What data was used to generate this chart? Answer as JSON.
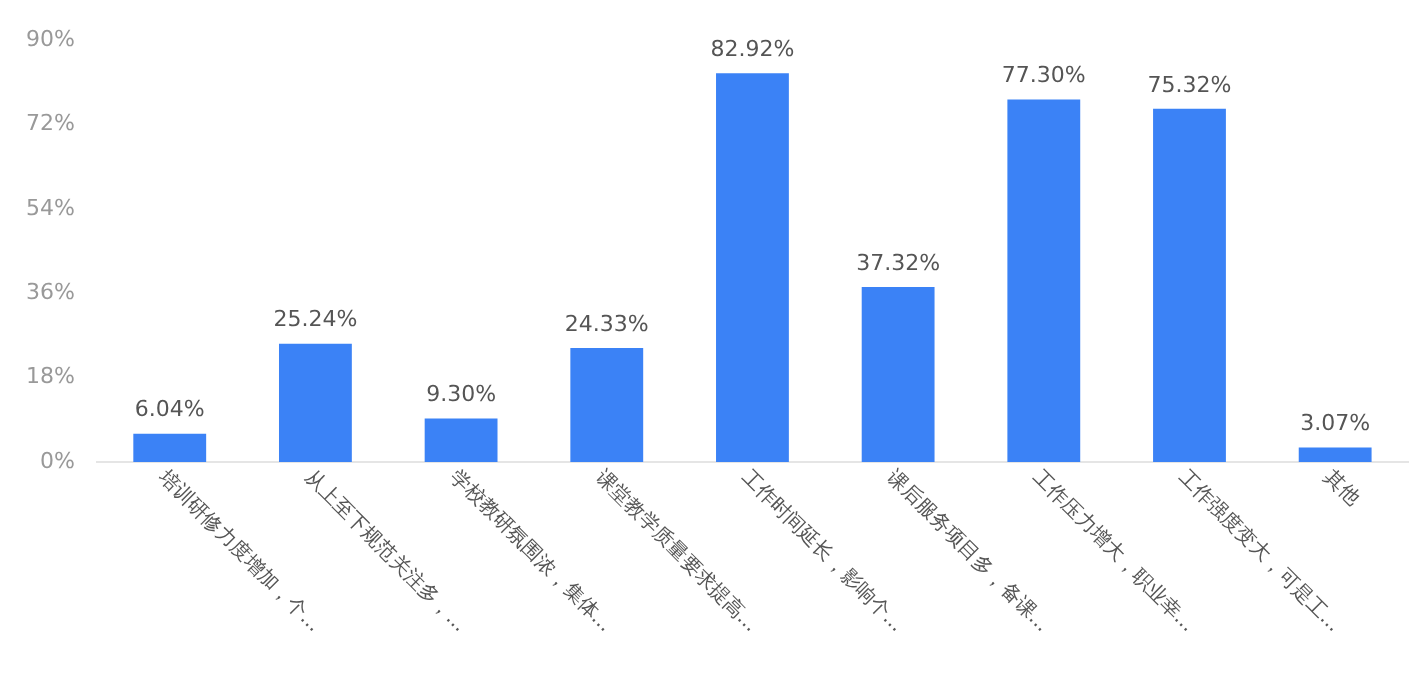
{
  "chart_data": {
    "type": "bar",
    "categories": [
      "培训研修力度增加，个...",
      "从上至下规范关注多，...",
      "学校教研氛围浓，集体...",
      "课堂教学质量要求提高...",
      "工作时间延长，影响个...",
      "课后服务项目多，备课...",
      "工作压力增大，职业幸...",
      "工作强度变大，可是工...",
      "其他"
    ],
    "values": [
      6.04,
      25.24,
      9.3,
      24.33,
      82.92,
      37.32,
      77.3,
      75.32,
      3.07
    ],
    "value_labels": [
      "6.04%",
      "25.24%",
      "9.30%",
      "24.33%",
      "82.92%",
      "37.32%",
      "77.30%",
      "75.32%",
      "3.07%"
    ],
    "color": "#3b82f6",
    "ylim": [
      0,
      90
    ],
    "yticks": [
      {
        "value": 0,
        "label": "0%"
      },
      {
        "value": 18,
        "label": "18%"
      },
      {
        "value": 36,
        "label": "36%"
      },
      {
        "value": 54,
        "label": "54%"
      },
      {
        "value": 72,
        "label": "72%"
      },
      {
        "value": 90,
        "label": "90%"
      }
    ],
    "grid": false,
    "legend": false
  }
}
